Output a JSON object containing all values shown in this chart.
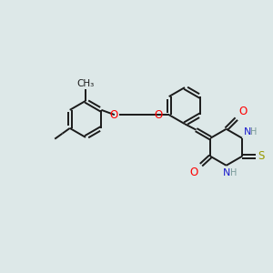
{
  "bg_color": "#dde8e8",
  "bond_color": "#1a1a1a",
  "O_color": "#ff0000",
  "N_color": "#1a1acc",
  "S_color": "#999900",
  "H_color": "#7a9a9a",
  "line_width": 1.4,
  "figsize": [
    3.0,
    3.0
  ],
  "dpi": 100,
  "xlim": [
    0,
    10
  ],
  "ylim": [
    0,
    10
  ]
}
